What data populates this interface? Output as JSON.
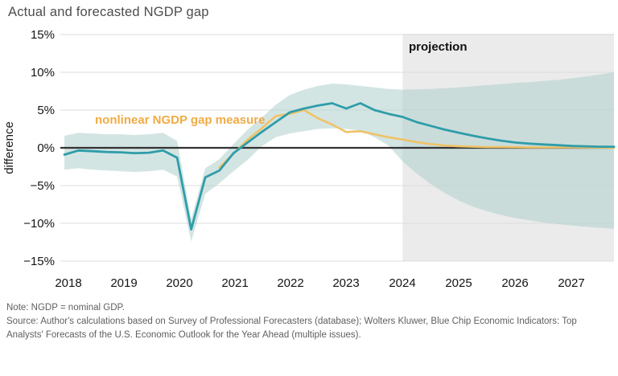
{
  "title": "Actual and forecasted NGDP gap",
  "annotations": {
    "projection_label": "projection",
    "series_label": "nonlinear NGDP gap measure"
  },
  "y_axis": {
    "label": "difference",
    "ticks": [
      "15%",
      "10%",
      "5%",
      "0%",
      "−5%",
      "−10%",
      "−15%"
    ]
  },
  "x_axis": {
    "ticks": [
      "2018",
      "2019",
      "2020",
      "2021",
      "2022",
      "2023",
      "2024",
      "2025",
      "2026",
      "2027"
    ]
  },
  "notes": {
    "note": "Note: NGDP = nominal GDP.",
    "source": "Source: Author's calculations based on Survey of Professional Forecasters (database); Wolters Kluwer, Blue Chip Economic Indicators: Top Analysts' Forecasts of the U.S. Economic Outlook for the Year Ahead (multiple issues)."
  },
  "colors": {
    "actual_line": "#2f9da9",
    "nonlinear_line": "#efc368",
    "band_fill": "#aecfcc",
    "projection_fill": "#ebebeb",
    "gridline": "#dedede",
    "zero_line": "#333333"
  },
  "chart_data": {
    "type": "line",
    "title": "Actual and forecasted NGDP gap",
    "xlabel": "",
    "ylabel": "difference",
    "ylim": [
      -15,
      15
    ],
    "y_tick_step": 5,
    "grid": "horizontal",
    "legend_position": "inline-annotation",
    "projection_start": 2024,
    "x": [
      2018.0,
      2018.25,
      2018.5,
      2018.75,
      2019.0,
      2019.25,
      2019.5,
      2019.75,
      2020.0,
      2020.25,
      2020.5,
      2020.75,
      2021.0,
      2021.25,
      2021.5,
      2021.75,
      2022.0,
      2022.25,
      2022.5,
      2022.75,
      2023.0,
      2023.25,
      2023.5,
      2023.75,
      2024.0,
      2024.25,
      2024.5,
      2024.75,
      2025.0,
      2025.25,
      2025.5,
      2025.75,
      2026.0,
      2026.25,
      2026.5,
      2026.75,
      2027.0,
      2027.25,
      2027.5,
      2027.75
    ],
    "series": [
      {
        "name": "actual and forecasted NGDP gap",
        "color": "#2f9da9",
        "values": [
          -0.9,
          -0.35,
          -0.45,
          -0.55,
          -0.6,
          -0.7,
          -0.65,
          -0.35,
          -1.3,
          -10.8,
          -3.9,
          -3.0,
          -0.7,
          0.7,
          2.1,
          3.4,
          4.7,
          5.2,
          5.6,
          5.9,
          5.2,
          5.9,
          5.0,
          4.5,
          4.1,
          3.4,
          2.9,
          2.4,
          2.0,
          1.6,
          1.25,
          0.95,
          0.7,
          0.55,
          0.45,
          0.35,
          0.25,
          0.2,
          0.15,
          0.15
        ]
      },
      {
        "name": "nonlinear NGDP gap measure",
        "color": "#efc368",
        "values": [
          null,
          null,
          null,
          null,
          null,
          null,
          null,
          null,
          null,
          null,
          null,
          -2.6,
          -0.8,
          1.1,
          2.6,
          4.2,
          4.5,
          5.0,
          3.9,
          3.1,
          2.1,
          2.2,
          1.8,
          1.4,
          1.1,
          0.75,
          0.5,
          0.3,
          0.2,
          0.15,
          0.1,
          0.1,
          0.08,
          0.06,
          0.05,
          0.05,
          0.05,
          0.04,
          0.03,
          0.0
        ]
      }
    ],
    "band": {
      "name": "uncertainty band",
      "upper": [
        1.6,
        2.0,
        1.9,
        1.8,
        1.8,
        1.7,
        1.8,
        2.0,
        0.9,
        -9.4,
        -2.7,
        -1.5,
        0.5,
        2.4,
        4.0,
        5.7,
        7.0,
        7.7,
        8.2,
        8.5,
        8.4,
        8.2,
        8.0,
        7.8,
        7.7,
        7.75,
        7.8,
        7.9,
        8.0,
        8.15,
        8.3,
        8.45,
        8.6,
        8.7,
        8.85,
        9.0,
        9.2,
        9.45,
        9.7,
        10.0
      ],
      "lower": [
        -2.9,
        -2.7,
        -2.9,
        -3.0,
        -3.1,
        -3.2,
        -3.1,
        -2.9,
        -3.8,
        -12.4,
        -6.1,
        -4.7,
        -3.1,
        -1.6,
        0.2,
        1.4,
        1.9,
        2.2,
        2.5,
        2.6,
        2.5,
        2.3,
        1.4,
        0.3,
        -1.8,
        -3.4,
        -4.8,
        -6.0,
        -7.0,
        -7.8,
        -8.4,
        -8.9,
        -9.3,
        -9.6,
        -9.9,
        -10.1,
        -10.3,
        -10.45,
        -10.6,
        -10.7
      ]
    }
  }
}
